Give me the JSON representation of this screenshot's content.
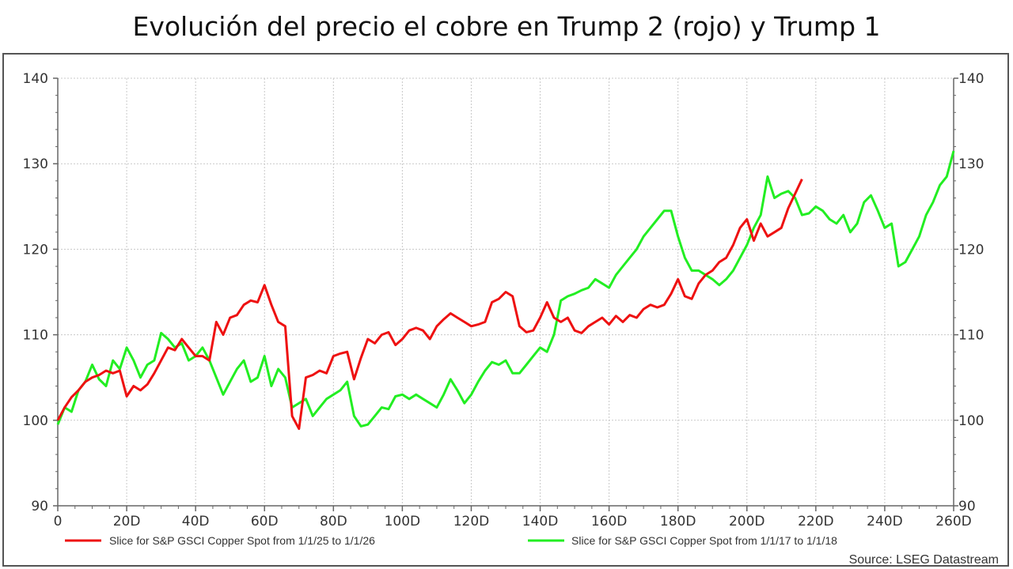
{
  "chart_data": {
    "type": "line",
    "title": "Evolución del precio el cobre en Trump 2 (rojo) y Trump 1",
    "xlabel": "",
    "ylabel": "",
    "xlim": [
      0,
      260
    ],
    "ylim": [
      90,
      140
    ],
    "x_ticks": [
      0,
      20,
      40,
      60,
      80,
      100,
      120,
      140,
      160,
      180,
      200,
      220,
      240,
      260
    ],
    "x_tick_labels": [
      "0",
      "20D",
      "40D",
      "60D",
      "80D",
      "100D",
      "120D",
      "140D",
      "160D",
      "180D",
      "200D",
      "220D",
      "240D",
      "260D"
    ],
    "y_ticks": [
      90,
      100,
      110,
      120,
      130,
      140
    ],
    "y_tick_labels": [
      "90",
      "100",
      "110",
      "120",
      "130",
      "140"
    ],
    "grid": true,
    "legend_position": "bottom",
    "source": "Source: LSEG Datastream",
    "series": [
      {
        "name": "Slice for S&P GSCI Copper Spot from 1/1/25 to 1/1/26",
        "color": "#ee1111",
        "x": [
          0,
          2,
          4,
          6,
          8,
          10,
          12,
          14,
          16,
          18,
          20,
          22,
          24,
          26,
          28,
          30,
          32,
          34,
          36,
          38,
          40,
          42,
          44,
          46,
          48,
          50,
          52,
          54,
          56,
          58,
          60,
          62,
          64,
          66,
          68,
          70,
          72,
          74,
          76,
          78,
          80,
          82,
          84,
          86,
          88,
          90,
          92,
          94,
          96,
          98,
          100,
          102,
          104,
          106,
          108,
          110,
          112,
          114,
          116,
          118,
          120,
          122,
          124,
          126,
          128,
          130,
          132,
          134,
          136,
          138,
          140,
          142,
          144,
          146,
          148,
          150,
          152,
          154,
          156,
          158,
          160,
          162,
          164,
          166,
          168,
          170,
          172,
          174,
          176,
          178,
          180,
          182,
          184,
          186,
          188,
          190,
          192,
          194,
          196,
          198,
          200,
          202,
          204,
          206,
          208,
          210,
          212,
          214,
          216
        ],
        "values": [
          100.0,
          101.5,
          102.7,
          103.5,
          104.5,
          105.0,
          105.3,
          105.8,
          105.5,
          105.8,
          102.8,
          104.0,
          103.5,
          104.2,
          105.5,
          107.0,
          108.5,
          108.2,
          109.5,
          108.5,
          107.5,
          107.5,
          107.0,
          111.5,
          110.0,
          112.0,
          112.3,
          113.5,
          114.0,
          113.8,
          115.8,
          113.5,
          111.5,
          111.0,
          100.5,
          99.0,
          105.0,
          105.3,
          105.8,
          105.5,
          107.5,
          107.8,
          108.0,
          104.8,
          107.3,
          109.5,
          109.0,
          110.0,
          110.3,
          108.8,
          109.5,
          110.5,
          110.8,
          110.5,
          109.5,
          111.0,
          111.8,
          112.5,
          112.0,
          111.5,
          111.0,
          111.2,
          111.5,
          113.8,
          114.2,
          115.0,
          114.5,
          111.0,
          110.3,
          110.5,
          112.0,
          113.8,
          112.0,
          111.5,
          112.0,
          110.5,
          110.2,
          111.0,
          111.5,
          112.0,
          111.2,
          112.2,
          111.5,
          112.3,
          112.0,
          113.0,
          113.5,
          113.2,
          113.5,
          114.8,
          116.5,
          114.5,
          114.2,
          116.0,
          117.0,
          117.5,
          118.5,
          119.0,
          120.5,
          122.5,
          123.5,
          121.0,
          123.0,
          121.5,
          122.0,
          122.5,
          124.8,
          126.5,
          128.2
        ]
      },
      {
        "name": "Slice for S&P GSCI Copper Spot from 1/1/17 to 1/1/18",
        "color": "#22ee22",
        "x": [
          0,
          2,
          4,
          6,
          8,
          10,
          12,
          14,
          16,
          18,
          20,
          22,
          24,
          26,
          28,
          30,
          32,
          34,
          36,
          38,
          40,
          42,
          44,
          46,
          48,
          50,
          52,
          54,
          56,
          58,
          60,
          62,
          64,
          66,
          68,
          70,
          72,
          74,
          76,
          78,
          80,
          82,
          84,
          86,
          88,
          90,
          92,
          94,
          96,
          98,
          100,
          102,
          104,
          106,
          108,
          110,
          112,
          114,
          116,
          118,
          120,
          122,
          124,
          126,
          128,
          130,
          132,
          134,
          136,
          138,
          140,
          142,
          144,
          146,
          148,
          150,
          152,
          154,
          156,
          158,
          160,
          162,
          164,
          166,
          168,
          170,
          172,
          174,
          176,
          178,
          180,
          182,
          184,
          186,
          188,
          190,
          192,
          194,
          196,
          198,
          200,
          202,
          204,
          206,
          208,
          210,
          212,
          214,
          216,
          218,
          220,
          222,
          224,
          226,
          228,
          230,
          232,
          234,
          236,
          238,
          240,
          242,
          244,
          246,
          248,
          250,
          252,
          254,
          256,
          258,
          260
        ],
        "values": [
          99.5,
          101.5,
          101.0,
          103.5,
          104.5,
          106.5,
          104.8,
          104.0,
          107.0,
          106.0,
          108.5,
          107.0,
          105.0,
          106.5,
          107.0,
          110.2,
          109.5,
          108.5,
          109.0,
          107.0,
          107.5,
          108.5,
          107.0,
          105.0,
          103.0,
          104.5,
          106.0,
          107.0,
          104.5,
          105.0,
          107.5,
          104.0,
          106.0,
          105.0,
          101.5,
          102.0,
          102.5,
          100.5,
          101.5,
          102.5,
          103.0,
          103.5,
          104.5,
          100.5,
          99.3,
          99.5,
          100.5,
          101.5,
          101.3,
          102.8,
          103.0,
          102.5,
          103.0,
          102.5,
          102.0,
          101.5,
          103.0,
          104.8,
          103.5,
          102.0,
          103.0,
          104.5,
          105.8,
          106.8,
          106.5,
          107.0,
          105.5,
          105.5,
          106.5,
          107.5,
          108.5,
          108.0,
          110.0,
          114.0,
          114.5,
          114.8,
          115.2,
          115.5,
          116.5,
          116.0,
          115.5,
          117.0,
          118.0,
          119.0,
          120.0,
          121.5,
          122.5,
          123.5,
          124.5,
          124.5,
          121.5,
          119.0,
          117.5,
          117.5,
          117.0,
          116.5,
          115.8,
          116.5,
          117.5,
          119.0,
          120.5,
          122.5,
          124.0,
          128.5,
          126.0,
          126.5,
          126.8,
          126.0,
          124.0,
          124.2,
          125.0,
          124.5,
          123.5,
          123.0,
          124.0,
          122.0,
          123.0,
          125.5,
          126.3,
          124.5,
          122.5,
          123.0,
          118.0,
          118.5,
          120.0,
          121.5,
          124.0,
          125.5,
          127.5,
          128.5,
          131.5
        ]
      }
    ]
  }
}
